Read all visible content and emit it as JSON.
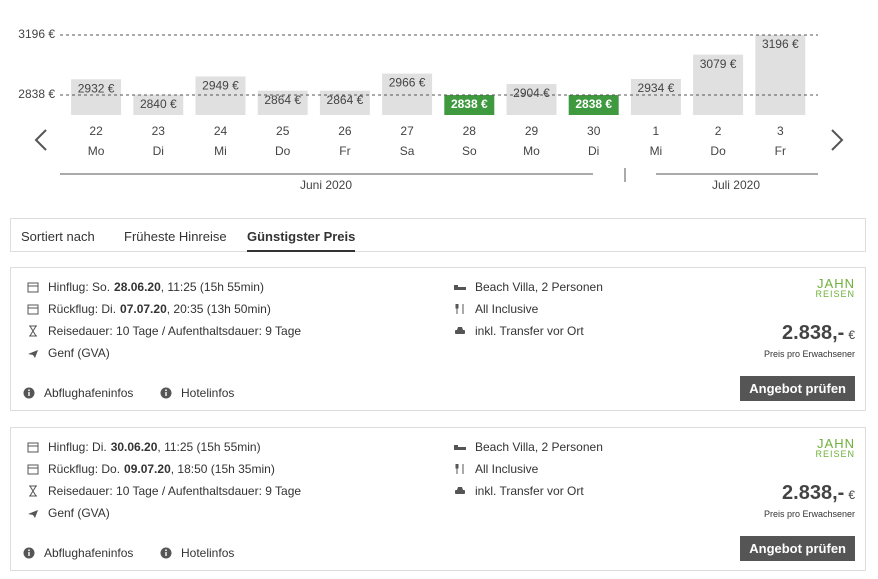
{
  "chart_data": {
    "type": "bar",
    "categories": [
      "22",
      "23",
      "24",
      "25",
      "26",
      "27",
      "28",
      "29",
      "30",
      "1",
      "2",
      "3"
    ],
    "weekdays": [
      "Mo",
      "Di",
      "Mi",
      "Do",
      "Fr",
      "Sa",
      "So",
      "Mo",
      "Di",
      "Mi",
      "Do",
      "Fr"
    ],
    "values": [
      2932,
      2840,
      2949,
      2864,
      2864,
      2966,
      2838,
      2904,
      2838,
      2934,
      3079,
      3196
    ],
    "value_labels": [
      "2932 €",
      "2840 €",
      "2949 €",
      "2864 €",
      "2864 €",
      "2966 €",
      "2838 €",
      "2904 €",
      "2838 €",
      "2934 €",
      "3079 €",
      "3196 €"
    ],
    "colors": [
      "#e0e0e0",
      "#e0e0e0",
      "#e0e0e0",
      "#e0e0e0",
      "#e0e0e0",
      "#e0e0e0",
      "#3f9a3f",
      "#e0e0e0",
      "#3f9a3f",
      "#e0e0e0",
      "#e0e0e0",
      "#e0e0e0"
    ],
    "ylim": [
      2719,
      3196
    ],
    "yticks": [
      {
        "value": 2838,
        "label": "2838 €"
      },
      {
        "value": 3196,
        "label": "3196 €"
      }
    ],
    "months": [
      "Juni 2020",
      "Juli 2020"
    ]
  },
  "sort": {
    "label": "Sortiert nach",
    "options": [
      "Früheste Hinreise",
      "Günstigster Preis"
    ],
    "active": 1
  },
  "offers": [
    {
      "outbound": {
        "label": "Hinflug: So.",
        "date": "28.06.20",
        "rest": ", 11:25 (15h 55min)"
      },
      "return": {
        "label": "Rückflug: Di.",
        "date": "07.07.20",
        "rest": ", 20:35 (13h 50min)"
      },
      "duration": "Reisedauer: 10 Tage / Aufenthaltsdauer: 9 Tage",
      "airport": "Genf (GVA)",
      "room": "Beach Villa, 2 Personen",
      "board": "All Inclusive",
      "transfer": "inkl. Transfer vor Ort",
      "provider": [
        "JAHN",
        "REISEN"
      ],
      "price": "2.838,-",
      "currency": "€",
      "price_note": "Preis pro Erwachsener",
      "button": "Angebot prüfen",
      "links": [
        "Abflughafeninfos",
        "Hotelinfos"
      ]
    },
    {
      "outbound": {
        "label": "Hinflug: Di.",
        "date": "30.06.20",
        "rest": ", 11:25 (15h 55min)"
      },
      "return": {
        "label": "Rückflug: Do.",
        "date": "09.07.20",
        "rest": ", 18:50 (15h 35min)"
      },
      "duration": "Reisedauer: 10 Tage / Aufenthaltsdauer: 9 Tage",
      "airport": "Genf (GVA)",
      "room": "Beach Villa, 2 Personen",
      "board": "All Inclusive",
      "transfer": "inkl. Transfer vor Ort",
      "provider": [
        "JAHN",
        "REISEN"
      ],
      "price": "2.838,-",
      "currency": "€",
      "price_note": "Preis pro Erwachsener",
      "button": "Angebot prüfen",
      "links": [
        "Abflughafeninfos",
        "Hotelinfos"
      ]
    }
  ]
}
